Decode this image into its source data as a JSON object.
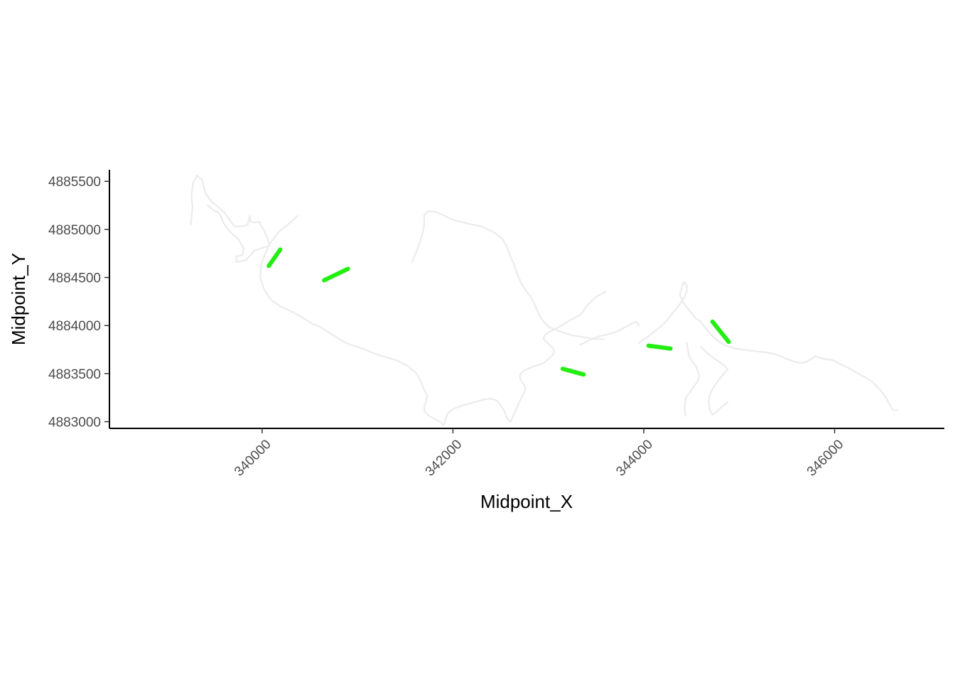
{
  "chart_data": {
    "type": "line",
    "title": "",
    "xlabel": "Midpoint_X",
    "ylabel": "Midpoint_Y",
    "xlim": [
      338400,
      347150
    ],
    "ylim": [
      4882930,
      4885620
    ],
    "x_ticks": [
      340000,
      342000,
      344000,
      346000
    ],
    "x_tick_labels": [
      "340000",
      "342000",
      "344000",
      "346000"
    ],
    "y_ticks": [
      4883000,
      4883500,
      4884000,
      4884500,
      4885000,
      4885500
    ],
    "y_tick_labels": [
      "4883000",
      "4883500",
      "4884000",
      "4884500",
      "4885000",
      "4885500"
    ],
    "grid": false,
    "legend": "none",
    "colors": {
      "river": "#ebebeb",
      "highlight": "#22ee11",
      "axis": "#000000"
    },
    "series": [
      {
        "role": "river",
        "x": [
          339253,
          339271,
          339260,
          339275,
          339315,
          339370,
          339395,
          339405,
          339460,
          339600,
          339710,
          339790,
          339850,
          339870,
          339880,
          339920,
          339970,
          340000,
          340030,
          340060,
          340080,
          340010,
          339920,
          339830,
          339730,
          339730,
          339790,
          339810,
          339750,
          339660,
          339600,
          339560,
          339530,
          339510,
          339490,
          339430
        ],
        "y": [
          4885050,
          4885230,
          4885340,
          4885480,
          4885560,
          4885520,
          4885420,
          4885380,
          4885300,
          4885180,
          4885030,
          4885030,
          4885050,
          4885140,
          4885080,
          4885070,
          4885080,
          4885020,
          4884970,
          4884900,
          4884830,
          4884810,
          4884780,
          4884680,
          4884660,
          4884720,
          4884730,
          4884800,
          4884900,
          4884980,
          4885060,
          4885150,
          4885190,
          4885180,
          4885200,
          4885250
        ]
      },
      {
        "role": "river",
        "x": [
          340370,
          340280,
          340180,
          340080,
          340020,
          339990,
          339980,
          340020,
          340090,
          340190,
          340320,
          340430,
          340520,
          340600,
          340680,
          340760,
          340840,
          340920,
          341000,
          341100,
          341200,
          341300,
          341370,
          341430,
          341480,
          341530,
          341560,
          341590,
          341620,
          341640,
          341660,
          341680,
          341690,
          341710,
          341730,
          341720,
          341700,
          341700,
          341750,
          341820,
          341880,
          341900,
          341910,
          341920,
          341940,
          342000,
          342100,
          342220,
          342320,
          342400,
          342460,
          342500,
          342540,
          342560,
          342590,
          342600,
          342610,
          342630,
          342660,
          342690,
          342720,
          342740,
          342760,
          342750,
          342720,
          342700,
          342710,
          342760,
          342810,
          342860,
          342900,
          342950,
          342990,
          343020,
          343050,
          343060,
          343050,
          343020,
          342980,
          342950,
          342960,
          343000,
          343060,
          343120,
          343170,
          343220,
          343280,
          343330,
          343360,
          343380,
          343400,
          343430,
          343450,
          343470,
          343490,
          343520,
          343560,
          343600
        ],
        "y": [
          4885140,
          4885060,
          4884980,
          4884850,
          4884720,
          4884620,
          4884500,
          4884380,
          4884270,
          4884200,
          4884140,
          4884080,
          4884020,
          4883990,
          4883940,
          4883890,
          4883840,
          4883800,
          4883780,
          4883740,
          4883700,
          4883670,
          4883650,
          4883630,
          4883600,
          4883580,
          4883550,
          4883530,
          4883500,
          4883460,
          4883420,
          4883380,
          4883350,
          4883310,
          4883270,
          4883220,
          4883160,
          4883110,
          4883060,
          4883020,
          4882990,
          4882960,
          4882980,
          4883020,
          4883080,
          4883130,
          4883170,
          4883200,
          4883230,
          4883240,
          4883220,
          4883170,
          4883110,
          4883050,
          4883010,
          4883000,
          4883010,
          4883060,
          4883120,
          4883190,
          4883250,
          4883290,
          4883330,
          4883380,
          4883420,
          4883460,
          4883500,
          4883540,
          4883560,
          4883580,
          4883590,
          4883610,
          4883640,
          4883670,
          4883700,
          4883730,
          4883760,
          4883790,
          4883830,
          4883860,
          4883900,
          4883930,
          4883960,
          4883990,
          4884020,
          4884050,
          4884080,
          4884110,
          4884140,
          4884170,
          4884200,
          4884230,
          4884250,
          4884270,
          4884290,
          4884310,
          4884330,
          4884350
        ]
      },
      {
        "role": "river",
        "x": [
          341570,
          341630,
          341680,
          341700,
          341700,
          341740,
          341830,
          342000,
          342160,
          342300,
          342430,
          342520,
          342560,
          342590,
          342610,
          342640,
          342660,
          342690,
          342720,
          342760,
          342800,
          342830,
          342860,
          342890,
          342920,
          342960,
          343000,
          343060,
          343120,
          343180,
          343240,
          343300,
          343360,
          343420,
          343480,
          343540,
          343580
        ],
        "y": [
          4884660,
          4884800,
          4884950,
          4885060,
          4885150,
          4885190,
          4885180,
          4885100,
          4885060,
          4885030,
          4884970,
          4884900,
          4884830,
          4884760,
          4884700,
          4884640,
          4884570,
          4884500,
          4884430,
          4884370,
          4884320,
          4884270,
          4884210,
          4884140,
          4884080,
          4884030,
          4883990,
          4883960,
          4883940,
          4883920,
          4883900,
          4883890,
          4883880,
          4883870,
          4883860,
          4883860,
          4883860
        ]
      },
      {
        "role": "river",
        "x": [
          343330,
          343380,
          343450,
          343540,
          343630,
          343700,
          343760,
          343820,
          343870,
          343920,
          343950
        ],
        "y": [
          4883800,
          4883820,
          4883860,
          4883890,
          4883910,
          4883930,
          4883960,
          4883990,
          4884020,
          4884040,
          4884000
        ]
      },
      {
        "role": "river",
        "x": [
          343950,
          343990,
          344040,
          344090,
          344140,
          344190,
          344240,
          344280,
          344320,
          344360,
          344400,
          344430,
          344450,
          344450,
          344420,
          344400,
          344380,
          344400,
          344450,
          344500,
          344540,
          344580,
          344600,
          344620,
          344650,
          344690,
          344740,
          344790,
          344840,
          344900,
          344960,
          345030,
          345110,
          345200,
          345290,
          345380,
          345460,
          345530,
          345590,
          345650,
          345700,
          345750,
          345800,
          345850,
          345910,
          345980,
          346060,
          346140,
          346230,
          346320,
          346400,
          346460,
          346510,
          346550,
          346580,
          346610,
          346660
        ],
        "y": [
          4883820,
          4883850,
          4883880,
          4883920,
          4883960,
          4884000,
          4884050,
          4884100,
          4884150,
          4884200,
          4884250,
          4884300,
          4884360,
          4884420,
          4884450,
          4884400,
          4884330,
          4884260,
          4884190,
          4884130,
          4884080,
          4884050,
          4884040,
          4884010,
          4883970,
          4883920,
          4883870,
          4883830,
          4883800,
          4883780,
          4883760,
          4883750,
          4883740,
          4883730,
          4883720,
          4883700,
          4883670,
          4883640,
          4883620,
          4883610,
          4883620,
          4883650,
          4883680,
          4883660,
          4883650,
          4883640,
          4883600,
          4883560,
          4883510,
          4883460,
          4883410,
          4883350,
          4883290,
          4883230,
          4883170,
          4883120,
          4883120
        ]
      },
      {
        "role": "river",
        "x": [
          344450,
          344460,
          344470,
          344490,
          344520,
          344550,
          344570,
          344580,
          344560,
          344520,
          344480,
          344440,
          344430,
          344430,
          344440
        ],
        "y": [
          4883820,
          4883760,
          4883700,
          4883650,
          4883610,
          4883570,
          4883520,
          4883470,
          4883410,
          4883360,
          4883300,
          4883250,
          4883190,
          4883120,
          4883060
        ]
      },
      {
        "role": "river",
        "x": [
          344600,
          344660,
          344720,
          344780,
          344820,
          344860,
          344880,
          344840,
          344800,
          344760,
          344720,
          344690,
          344680,
          344690,
          344720,
          344760,
          344800,
          344840,
          344880
        ],
        "y": [
          4883780,
          4883720,
          4883670,
          4883630,
          4883600,
          4883570,
          4883540,
          4883500,
          4883450,
          4883400,
          4883340,
          4883270,
          4883200,
          4883120,
          4883070,
          4883100,
          4883140,
          4883170,
          4883200
        ]
      },
      {
        "role": "highlight",
        "x": [
          340070,
          340190
        ],
        "y": [
          4884620,
          4884790
        ]
      },
      {
        "role": "highlight",
        "x": [
          340650,
          340900
        ],
        "y": [
          4884470,
          4884590
        ]
      },
      {
        "role": "highlight",
        "x": [
          343150,
          343370
        ],
        "y": [
          4883550,
          4883490
        ]
      },
      {
        "role": "highlight",
        "x": [
          344050,
          344280
        ],
        "y": [
          4883790,
          4883760
        ]
      },
      {
        "role": "highlight",
        "x": [
          344720,
          344890
        ],
        "y": [
          4884040,
          4883830
        ]
      }
    ]
  }
}
